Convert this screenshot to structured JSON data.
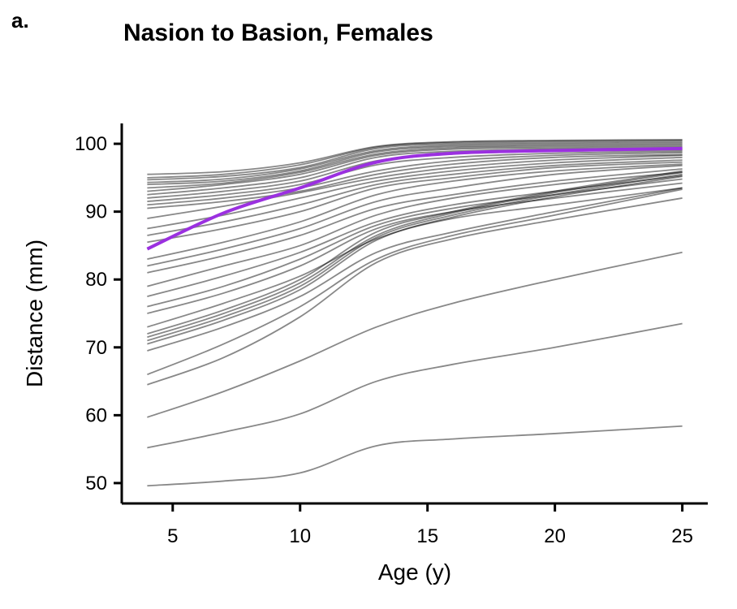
{
  "panel_label": "a.",
  "chart_data": {
    "type": "line",
    "title": "Nasion to Basion, Females",
    "xlabel": "Age (y)",
    "ylabel": "Distance (mm)",
    "xlim": [
      3,
      26
    ],
    "ylim": [
      47,
      103
    ],
    "xticks": [
      5,
      10,
      15,
      20,
      25
    ],
    "yticks": [
      50,
      60,
      70,
      80,
      90,
      100
    ],
    "grid": false,
    "legend": "none",
    "colors": {
      "background": "#888888",
      "highlight": "#9b30e0"
    },
    "x": [
      4,
      7,
      10,
      13,
      16,
      20,
      25
    ],
    "highlight": {
      "values": [
        84.5,
        89.8,
        93.5,
        97.3,
        98.6,
        99.0,
        99.3
      ]
    },
    "series": [
      {
        "values": [
          95.5,
          95.9,
          97.2,
          99.6,
          100.3,
          100.5,
          100.6
        ]
      },
      {
        "values": [
          95.0,
          95.5,
          96.9,
          99.5,
          100.2,
          100.4,
          100.5
        ]
      },
      {
        "values": [
          94.7,
          95.2,
          96.5,
          99.3,
          100.0,
          100.2,
          100.3
        ]
      },
      {
        "values": [
          94.3,
          94.8,
          96.3,
          99.0,
          99.8,
          100.0,
          100.1
        ]
      },
      {
        "values": [
          94.0,
          94.5,
          96.0,
          98.8,
          99.6,
          99.8,
          99.9
        ]
      },
      {
        "values": [
          93.5,
          94.2,
          95.8,
          98.5,
          99.4,
          99.6,
          99.7
        ]
      },
      {
        "values": [
          93.0,
          94.0,
          95.5,
          98.3,
          99.2,
          99.4,
          99.5
        ]
      },
      {
        "values": [
          92.5,
          93.5,
          95.0,
          98.0,
          98.9,
          99.2,
          99.3
        ]
      },
      {
        "values": [
          92.0,
          93.0,
          94.5,
          97.5,
          98.5,
          98.9,
          99.1
        ]
      },
      {
        "values": [
          91.5,
          92.5,
          94.0,
          96.9,
          98.0,
          98.6,
          98.9
        ]
      },
      {
        "values": [
          91.0,
          92.0,
          93.5,
          96.0,
          97.5,
          98.3,
          98.7
        ]
      },
      {
        "values": [
          90.5,
          91.5,
          93.0,
          95.5,
          97.0,
          98.0,
          98.4
        ]
      },
      {
        "values": [
          89.0,
          90.8,
          92.8,
          95.0,
          96.5,
          97.6,
          98.3
        ]
      },
      {
        "values": [
          87.5,
          89.5,
          92.0,
          94.5,
          96.0,
          97.2,
          98.0
        ]
      },
      {
        "values": [
          86.5,
          88.5,
          91.0,
          94.0,
          95.5,
          96.8,
          97.6
        ]
      },
      {
        "values": [
          85.5,
          87.5,
          90.0,
          93.5,
          95.0,
          96.5,
          97.3
        ]
      },
      {
        "values": [
          83.0,
          85.5,
          88.5,
          92.5,
          94.5,
          96.0,
          97.0
        ]
      },
      {
        "values": [
          82.0,
          84.5,
          87.5,
          91.5,
          93.5,
          95.5,
          96.8
        ]
      },
      {
        "values": [
          81.0,
          83.5,
          86.5,
          90.5,
          92.5,
          94.5,
          96.3
        ]
      },
      {
        "values": [
          79.0,
          82.0,
          85.0,
          89.5,
          92.0,
          94.0,
          95.8
        ]
      },
      {
        "values": [
          77.5,
          80.5,
          84.0,
          88.5,
          91.0,
          93.0,
          95.3
        ]
      },
      {
        "values": [
          76.0,
          79.0,
          83.0,
          88.0,
          90.5,
          92.5,
          94.8
        ]
      },
      {
        "values": [
          75.0,
          78.0,
          82.0,
          87.5,
          90.0,
          92.0,
          94.2
        ]
      },
      {
        "values": [
          73.0,
          76.5,
          80.5,
          86.0,
          89.0,
          91.0,
          93.5
        ]
      },
      {
        "values": [
          72.0,
          75.5,
          80.0,
          87.0,
          90.0,
          93.0,
          96.0
        ]
      },
      {
        "values": [
          71.5,
          75.0,
          79.5,
          86.5,
          89.8,
          92.8,
          95.8
        ]
      },
      {
        "values": [
          71.0,
          74.5,
          79.0,
          86.2,
          89.5,
          92.5,
          95.5
        ]
      },
      {
        "values": [
          70.5,
          74.0,
          78.5,
          85.8,
          89.2,
          92.2,
          95.2
        ]
      },
      {
        "values": [
          69.5,
          73.0,
          77.5,
          84.0,
          87.0,
          90.0,
          93.5
        ]
      },
      {
        "values": [
          66.0,
          70.5,
          76.0,
          83.0,
          86.5,
          89.5,
          93.3
        ]
      },
      {
        "values": [
          64.5,
          68.5,
          74.5,
          82.5,
          86.0,
          88.8,
          92.0
        ]
      },
      {
        "values": [
          59.7,
          63.5,
          68.0,
          73.0,
          76.5,
          80.0,
          84.0
        ]
      },
      {
        "values": [
          55.2,
          57.5,
          60.2,
          65.0,
          67.5,
          70.0,
          73.5
        ]
      },
      {
        "values": [
          49.6,
          50.3,
          51.5,
          55.5,
          56.5,
          57.3,
          58.4
        ]
      }
    ]
  }
}
